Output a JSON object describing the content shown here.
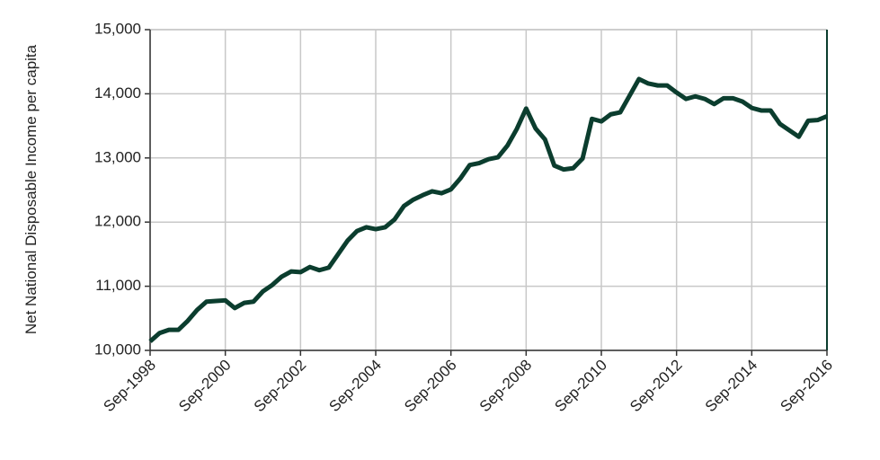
{
  "chart_data": {
    "type": "line",
    "y_label": "Net National Disposable Income per capita",
    "categories": [
      "Sep-1998",
      null,
      null,
      null,
      null,
      null,
      null,
      null,
      "Sep-2000",
      null,
      null,
      null,
      null,
      null,
      null,
      null,
      "Sep-2002",
      null,
      null,
      null,
      null,
      null,
      null,
      null,
      "Sep-2004",
      null,
      null,
      null,
      null,
      null,
      null,
      null,
      "Sep-2006",
      null,
      null,
      null,
      null,
      null,
      null,
      null,
      "Sep-2008",
      null,
      null,
      null,
      null,
      null,
      null,
      null,
      "Sep-2010",
      null,
      null,
      null,
      null,
      null,
      null,
      null,
      "Sep-2012",
      null,
      null,
      null,
      null,
      null,
      null,
      null,
      "Sep-2014",
      null,
      null,
      null,
      null,
      null,
      null,
      null,
      "Sep-2016"
    ],
    "series": [
      {
        "color": "#0b3d2e",
        "values": [
          10140,
          10270,
          10320,
          10320,
          10460,
          10630,
          10760,
          10770,
          10780,
          10660,
          10740,
          10760,
          10920,
          11020,
          11150,
          11230,
          11220,
          11300,
          11250,
          11290,
          11500,
          11710,
          11860,
          11920,
          11890,
          11920,
          12040,
          12250,
          12350,
          12420,
          12480,
          12450,
          12510,
          12680,
          12890,
          12920,
          12980,
          13010,
          13190,
          13450,
          13770,
          13460,
          13290,
          12880,
          12820,
          12840,
          12990,
          13610,
          13570,
          13680,
          13710,
          13970,
          14230,
          14160,
          14130,
          14130,
          14020,
          13920,
          13960,
          13920,
          13840,
          13930,
          13930,
          13880,
          13780,
          13740,
          13740,
          13530,
          13430,
          13330,
          13580,
          13590,
          13650
        ]
      }
    ],
    "ylim": [
      10000,
      15000
    ],
    "yticks": [
      {
        "value": 10000,
        "label": "10,000"
      },
      {
        "value": 11000,
        "label": "11,000"
      },
      {
        "value": 12000,
        "label": "12,000"
      },
      {
        "value": 13000,
        "label": "13,000"
      },
      {
        "value": 14000,
        "label": "14,000"
      },
      {
        "value": 15000,
        "label": "15,000"
      }
    ],
    "grid": true
  }
}
